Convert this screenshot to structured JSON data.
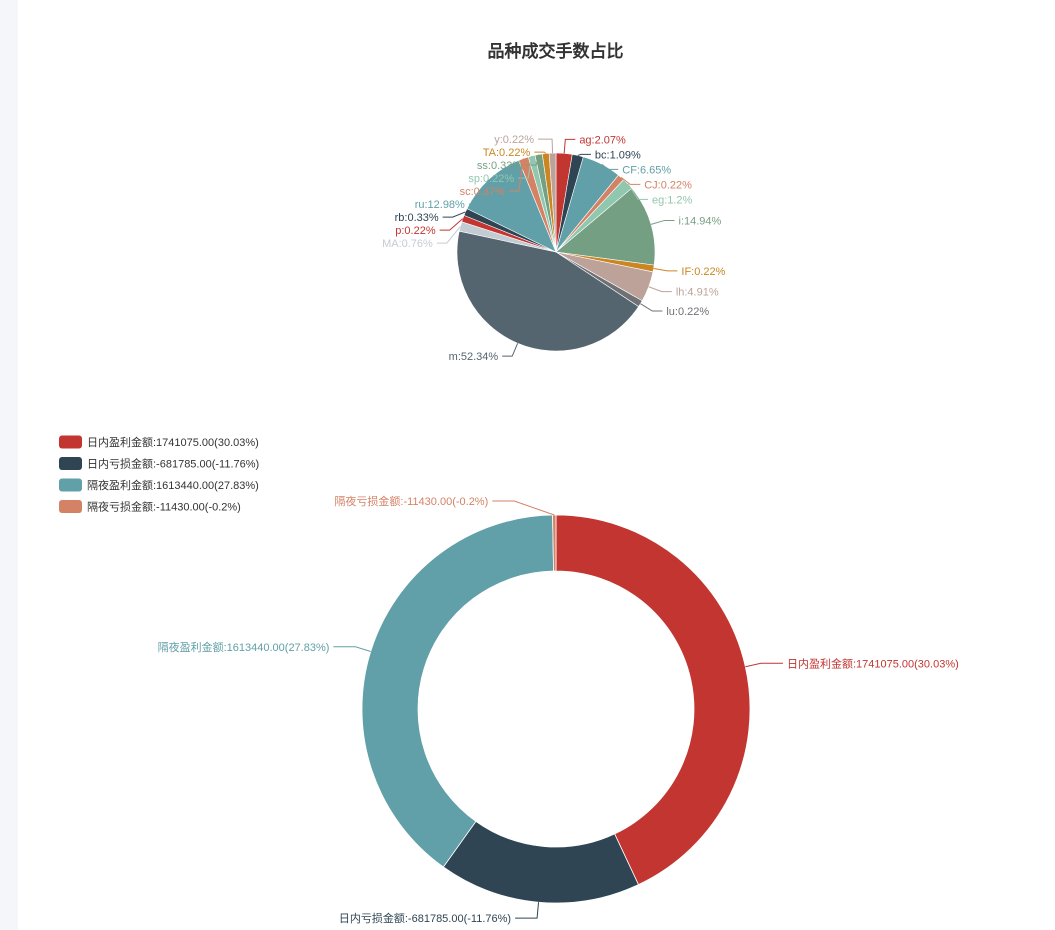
{
  "chart_data": [
    {
      "type": "pie",
      "title": "品种成交手数占比",
      "slices": [
        {
          "name": "ag",
          "label": "ag:2.07%",
          "value": 2.07,
          "color": "#c23531"
        },
        {
          "name": "bc",
          "label": "bc:1.09%",
          "value": 1.09,
          "color": "#2f4554"
        },
        {
          "name": "CF",
          "label": "CF:6.65%",
          "value": 6.65,
          "color": "#61a0a8"
        },
        {
          "name": "CJ",
          "label": "CJ:0.22%",
          "value": 0.22,
          "color": "#d48265"
        },
        {
          "name": "eg",
          "label": "eg:1.2%",
          "value": 1.2,
          "color": "#91c7ae"
        },
        {
          "name": "i",
          "label": "i:14.94%",
          "value": 14.94,
          "color": "#749f83"
        },
        {
          "name": "IF",
          "label": "IF:0.22%",
          "value": 0.22,
          "color": "#ca8622"
        },
        {
          "name": "lh",
          "label": "lh:4.91%",
          "value": 4.91,
          "color": "#bda29a"
        },
        {
          "name": "lu",
          "label": "lu:0.22%",
          "value": 0.22,
          "color": "#6e7074"
        },
        {
          "name": "m",
          "label": "m:52.34%",
          "value": 52.34,
          "color": "#546570"
        },
        {
          "name": "MA",
          "label": "MA:0.76%",
          "value": 0.76,
          "color": "#c4ccd3"
        },
        {
          "name": "p",
          "label": "p:0.22%",
          "value": 0.22,
          "color": "#c23531"
        },
        {
          "name": "rb",
          "label": "rb:0.33%",
          "value": 0.33,
          "color": "#2f4554"
        },
        {
          "name": "ru",
          "label": "ru:12.98%",
          "value": 12.98,
          "color": "#61a0a8"
        },
        {
          "name": "sc",
          "label": "sc:0.87%",
          "value": 0.87,
          "color": "#d48265"
        },
        {
          "name": "sp",
          "label": "sp:0.22%",
          "value": 0.22,
          "color": "#91c7ae"
        },
        {
          "name": "ss",
          "label": "ss:0.33%",
          "value": 0.33,
          "color": "#749f83"
        },
        {
          "name": "TA",
          "label": "TA:0.22%",
          "value": 0.22,
          "color": "#ca8622"
        },
        {
          "name": "y",
          "label": "y:0.22%",
          "value": 0.22,
          "color": "#bda29a"
        }
      ]
    },
    {
      "type": "pie",
      "title": "",
      "legend_position": "top-left",
      "slices": [
        {
          "name": "日内盈利金额",
          "label": "日内盈利金额:1741075.00(30.03%)",
          "value": 1741075.0,
          "percent": 30.03,
          "color": "#c23531"
        },
        {
          "name": "日内亏损金额",
          "label": "日内亏损金额:-681785.00(-11.76%)",
          "value": -681785.0,
          "percent": -11.76,
          "color": "#2f4554"
        },
        {
          "name": "隔夜盈利金额",
          "label": "隔夜盈利金额:1613440.00(27.83%)",
          "value": 1613440.0,
          "percent": 27.83,
          "color": "#61a0a8"
        },
        {
          "name": "隔夜亏损金额",
          "label": "隔夜亏损金额:-11430.00(-0.2%)",
          "value": -11430.0,
          "percent": -0.2,
          "color": "#d48265"
        }
      ]
    }
  ]
}
